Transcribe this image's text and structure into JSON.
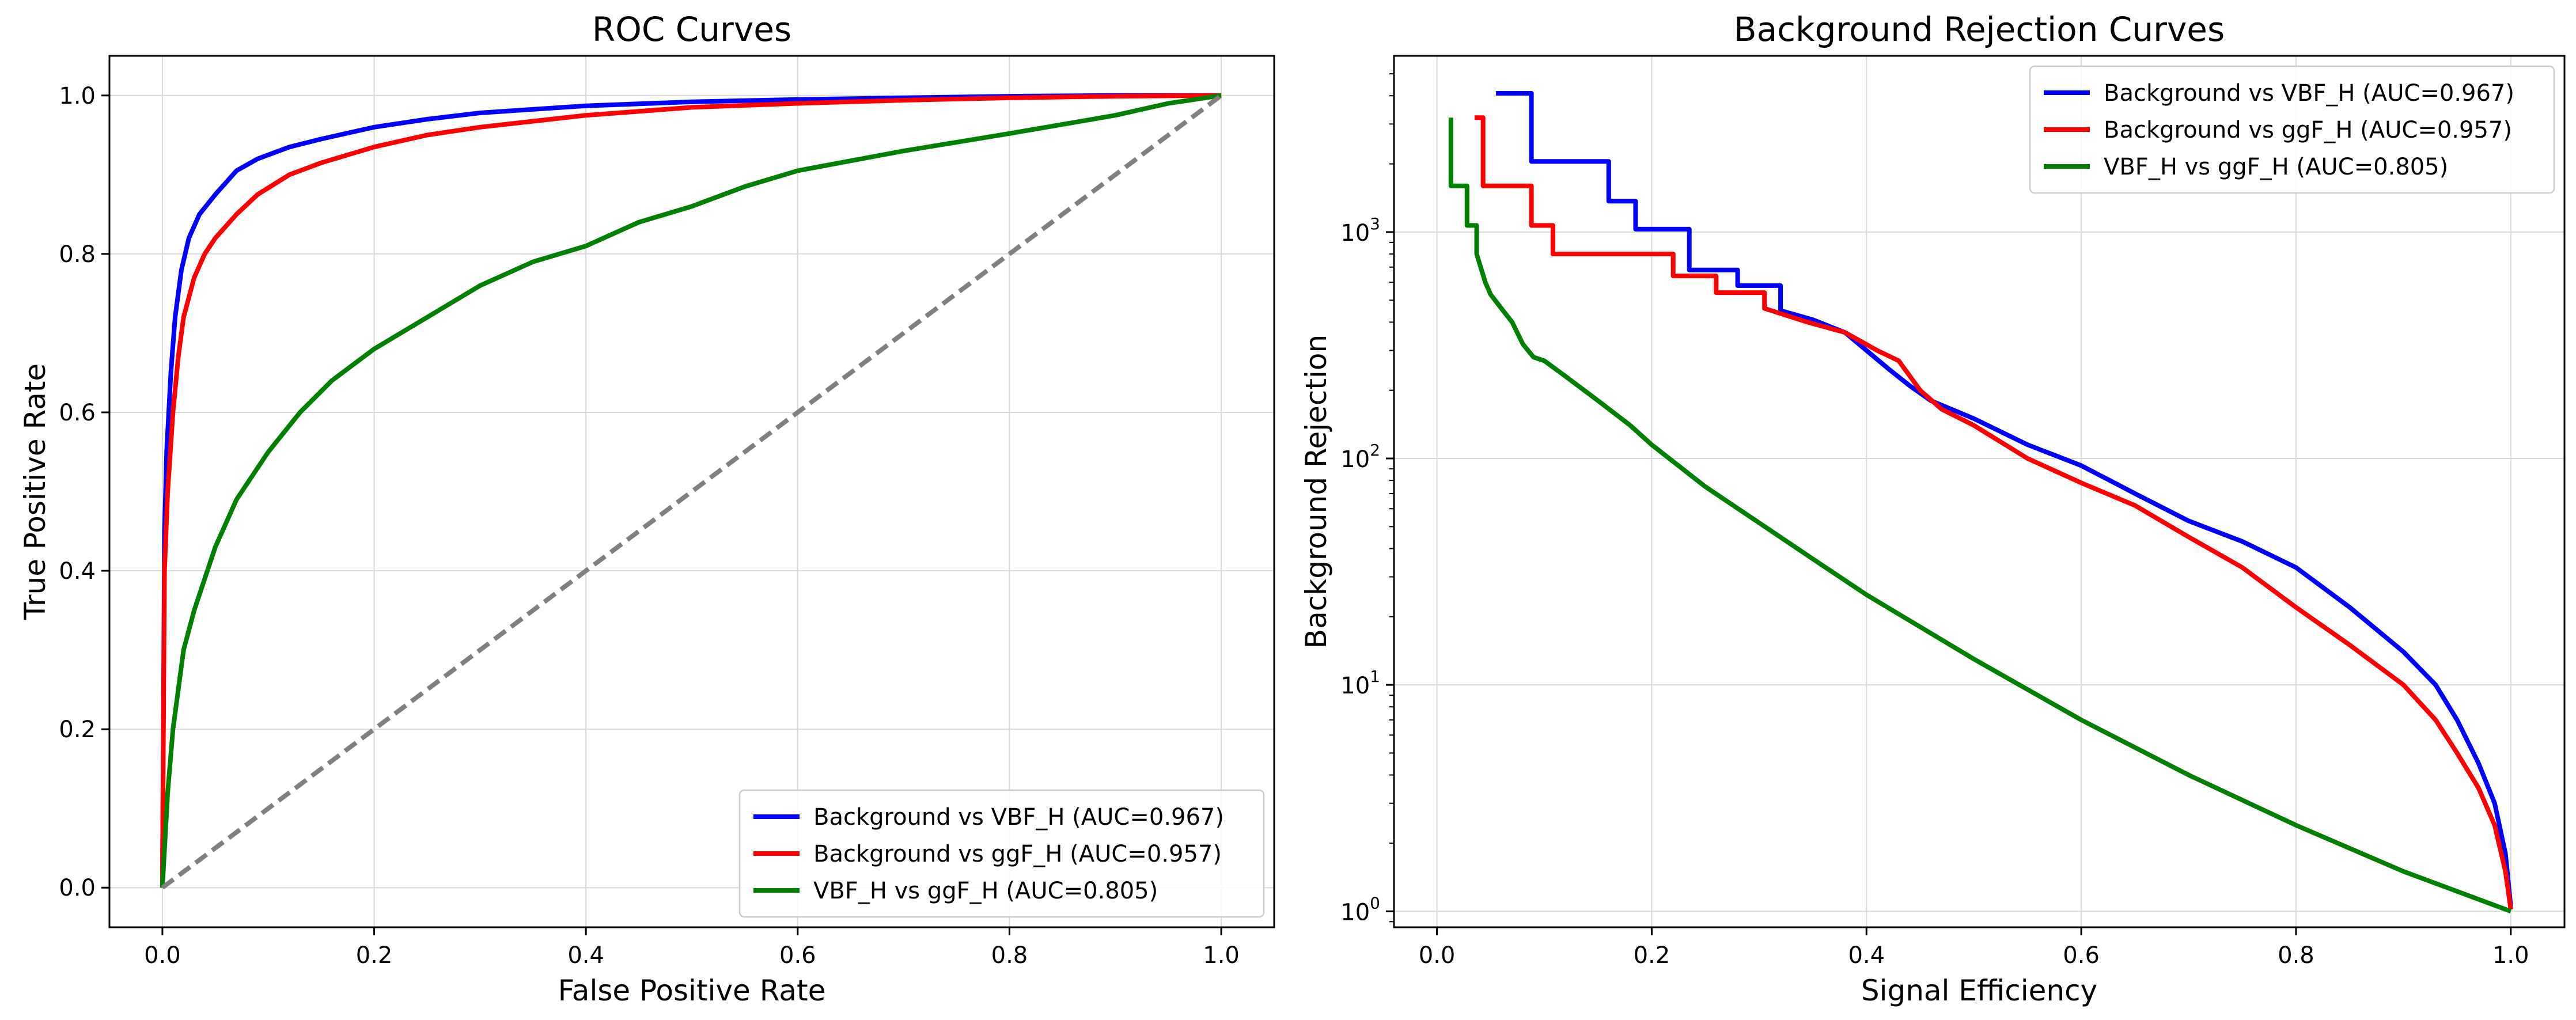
{
  "chart_data": [
    {
      "type": "line",
      "title": "ROC Curves",
      "xlabel": "False Positive Rate",
      "ylabel": "True Positive Rate",
      "xlim": [
        -0.05,
        1.05
      ],
      "ylim": [
        -0.05,
        1.05
      ],
      "xticks": [
        0.0,
        0.2,
        0.4,
        0.6,
        0.8,
        1.0
      ],
      "xtick_labels": [
        "0.0",
        "0.2",
        "0.4",
        "0.6",
        "0.8",
        "1.0"
      ],
      "yticks": [
        0.0,
        0.2,
        0.4,
        0.6,
        0.8,
        1.0
      ],
      "ytick_labels": [
        "0.0",
        "0.2",
        "0.4",
        "0.6",
        "0.8",
        "1.0"
      ],
      "grid": true,
      "legend_position": "lower-right",
      "series": [
        {
          "name": "Background vs VBF_H (AUC=0.967)",
          "color": "#0000ff",
          "x": [
            0,
            0.002,
            0.004,
            0.008,
            0.012,
            0.018,
            0.025,
            0.035,
            0.05,
            0.07,
            0.09,
            0.12,
            0.15,
            0.2,
            0.25,
            0.3,
            0.4,
            0.5,
            0.6,
            0.7,
            0.8,
            0.9,
            1.0
          ],
          "y": [
            0,
            0.45,
            0.55,
            0.65,
            0.72,
            0.78,
            0.82,
            0.85,
            0.875,
            0.905,
            0.92,
            0.935,
            0.945,
            0.96,
            0.97,
            0.978,
            0.987,
            0.992,
            0.995,
            0.997,
            0.999,
            1.0,
            1.0
          ]
        },
        {
          "name": "Background vs ggF_H (AUC=0.957)",
          "color": "#ff0000",
          "x": [
            0,
            0.002,
            0.005,
            0.01,
            0.015,
            0.02,
            0.03,
            0.04,
            0.05,
            0.07,
            0.09,
            0.12,
            0.15,
            0.2,
            0.25,
            0.3,
            0.4,
            0.5,
            0.6,
            0.7,
            0.8,
            0.9,
            1.0
          ],
          "y": [
            0,
            0.4,
            0.5,
            0.6,
            0.67,
            0.72,
            0.77,
            0.8,
            0.82,
            0.85,
            0.875,
            0.9,
            0.915,
            0.935,
            0.95,
            0.96,
            0.975,
            0.985,
            0.99,
            0.994,
            0.997,
            0.999,
            1.0
          ]
        },
        {
          "name": "VBF_H vs ggF_H (AUC=0.805)",
          "color": "#008000",
          "x": [
            0,
            0.005,
            0.01,
            0.02,
            0.03,
            0.05,
            0.07,
            0.1,
            0.13,
            0.16,
            0.2,
            0.25,
            0.3,
            0.35,
            0.4,
            0.45,
            0.5,
            0.55,
            0.6,
            0.7,
            0.8,
            0.9,
            0.95,
            1.0
          ],
          "y": [
            0,
            0.12,
            0.2,
            0.3,
            0.35,
            0.43,
            0.49,
            0.55,
            0.6,
            0.64,
            0.68,
            0.72,
            0.76,
            0.79,
            0.81,
            0.84,
            0.86,
            0.885,
            0.905,
            0.93,
            0.952,
            0.975,
            0.99,
            1.0
          ]
        },
        {
          "name": "",
          "style": "dashed",
          "color": "#808080",
          "x": [
            0,
            1
          ],
          "y": [
            0,
            1
          ]
        }
      ]
    },
    {
      "type": "line",
      "title": "Background Rejection Curves",
      "xlabel": "Signal Efficiency",
      "ylabel": "Background Rejection",
      "yscale": "log",
      "xlim": [
        -0.04,
        1.05
      ],
      "ylim": [
        0.85,
        6000
      ],
      "xticks": [
        0.0,
        0.2,
        0.4,
        0.6,
        0.8,
        1.0
      ],
      "xtick_labels": [
        "0.0",
        "0.2",
        "0.4",
        "0.6",
        "0.8",
        "1.0"
      ],
      "yticks": [
        1,
        10,
        100,
        1000
      ],
      "ytick_labels": [
        [
          "10",
          "0"
        ],
        [
          "10",
          "1"
        ],
        [
          "10",
          "2"
        ],
        [
          "10",
          "3"
        ]
      ],
      "grid": true,
      "legend_position": "upper-right",
      "series": [
        {
          "name": "Background vs VBF_H (AUC=0.967)",
          "color": "#0000ff",
          "x": [
            0.055,
            0.088,
            0.088,
            0.16,
            0.16,
            0.185,
            0.185,
            0.235,
            0.235,
            0.28,
            0.28,
            0.32,
            0.32,
            0.35,
            0.38,
            0.4,
            0.42,
            0.44,
            0.46,
            0.5,
            0.55,
            0.6,
            0.65,
            0.7,
            0.75,
            0.8,
            0.85,
            0.9,
            0.93,
            0.95,
            0.97,
            0.985,
            0.995,
            1.0
          ],
          "y": [
            4100,
            4100,
            2050,
            2050,
            1370,
            1370,
            1030,
            1030,
            680,
            680,
            580,
            580,
            450,
            410,
            360,
            300,
            250,
            210,
            180,
            150,
            115,
            93,
            70,
            53,
            43,
            33,
            22,
            14,
            10,
            7,
            4.5,
            3,
            1.8,
            1.05
          ]
        },
        {
          "name": "Background vs ggF_H (AUC=0.957)",
          "color": "#ff0000",
          "x": [
            0.035,
            0.043,
            0.043,
            0.088,
            0.088,
            0.108,
            0.108,
            0.22,
            0.22,
            0.26,
            0.26,
            0.305,
            0.305,
            0.345,
            0.38,
            0.41,
            0.43,
            0.45,
            0.47,
            0.5,
            0.55,
            0.6,
            0.65,
            0.7,
            0.75,
            0.8,
            0.85,
            0.9,
            0.93,
            0.95,
            0.97,
            0.985,
            0.995,
            1.0
          ],
          "y": [
            3200,
            3200,
            1600,
            1600,
            1070,
            1070,
            800,
            800,
            640,
            640,
            540,
            540,
            460,
            400,
            360,
            300,
            270,
            200,
            165,
            140,
            100,
            78,
            62,
            45,
            33,
            22,
            15,
            10,
            7,
            5,
            3.5,
            2.4,
            1.5,
            1.02
          ]
        },
        {
          "name": "VBF_H vs ggF_H (AUC=0.805)",
          "color": "#008000",
          "x": [
            0.013,
            0.013,
            0.028,
            0.028,
            0.037,
            0.037,
            0.045,
            0.05,
            0.06,
            0.07,
            0.08,
            0.09,
            0.1,
            0.12,
            0.15,
            0.18,
            0.2,
            0.25,
            0.3,
            0.35,
            0.4,
            0.5,
            0.6,
            0.7,
            0.8,
            0.9,
            1.0
          ],
          "y": [
            3200,
            1600,
            1600,
            1070,
            1070,
            800,
            600,
            530,
            460,
            400,
            320,
            280,
            270,
            230,
            180,
            140,
            115,
            75,
            52,
            36,
            25,
            13,
            7,
            4,
            2.4,
            1.5,
            1.0
          ]
        }
      ]
    }
  ]
}
